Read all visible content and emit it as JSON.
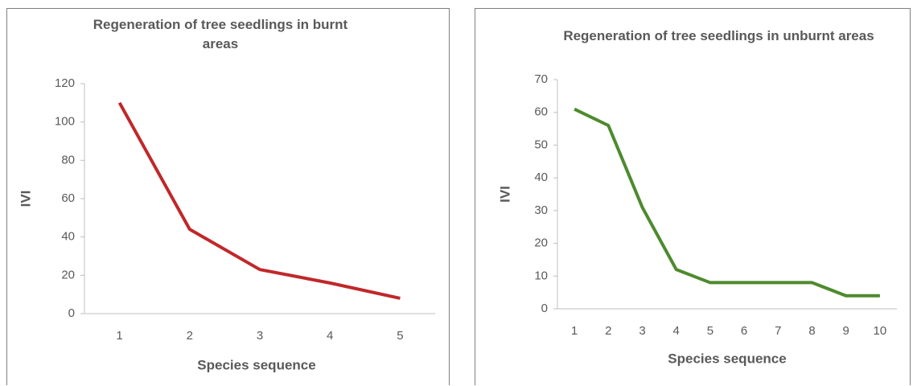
{
  "chart_data": [
    {
      "type": "line",
      "title": "Regeneration of  tree seedlings  in burnt areas",
      "x_label": "Species sequence",
      "y_label": "IVI",
      "categories": [
        "1",
        "2",
        "3",
        "4",
        "5"
      ],
      "series": [
        {
          "name": "IVI",
          "color": "#c0282a",
          "values": [
            110,
            44,
            23,
            16,
            8
          ]
        }
      ],
      "ylim": [
        0,
        120
      ],
      "yticks": [
        0,
        20,
        40,
        60,
        80,
        100,
        120
      ],
      "grid": false
    },
    {
      "type": "line",
      "title": "Regeneration of  tree seedlings  in unburnt areas",
      "x_label": "Species sequence",
      "y_label": "IVI",
      "categories": [
        "1",
        "2",
        "3",
        "4",
        "5",
        "6",
        "7",
        "8",
        "9",
        "10"
      ],
      "series": [
        {
          "name": "IVI",
          "color": "#4e8a2e",
          "values": [
            61,
            56,
            31,
            12,
            8,
            8,
            8,
            8,
            4,
            4
          ]
        }
      ],
      "ylim": [
        0,
        70
      ],
      "yticks": [
        0,
        10,
        20,
        30,
        40,
        50,
        60,
        70
      ],
      "grid": false
    }
  ]
}
